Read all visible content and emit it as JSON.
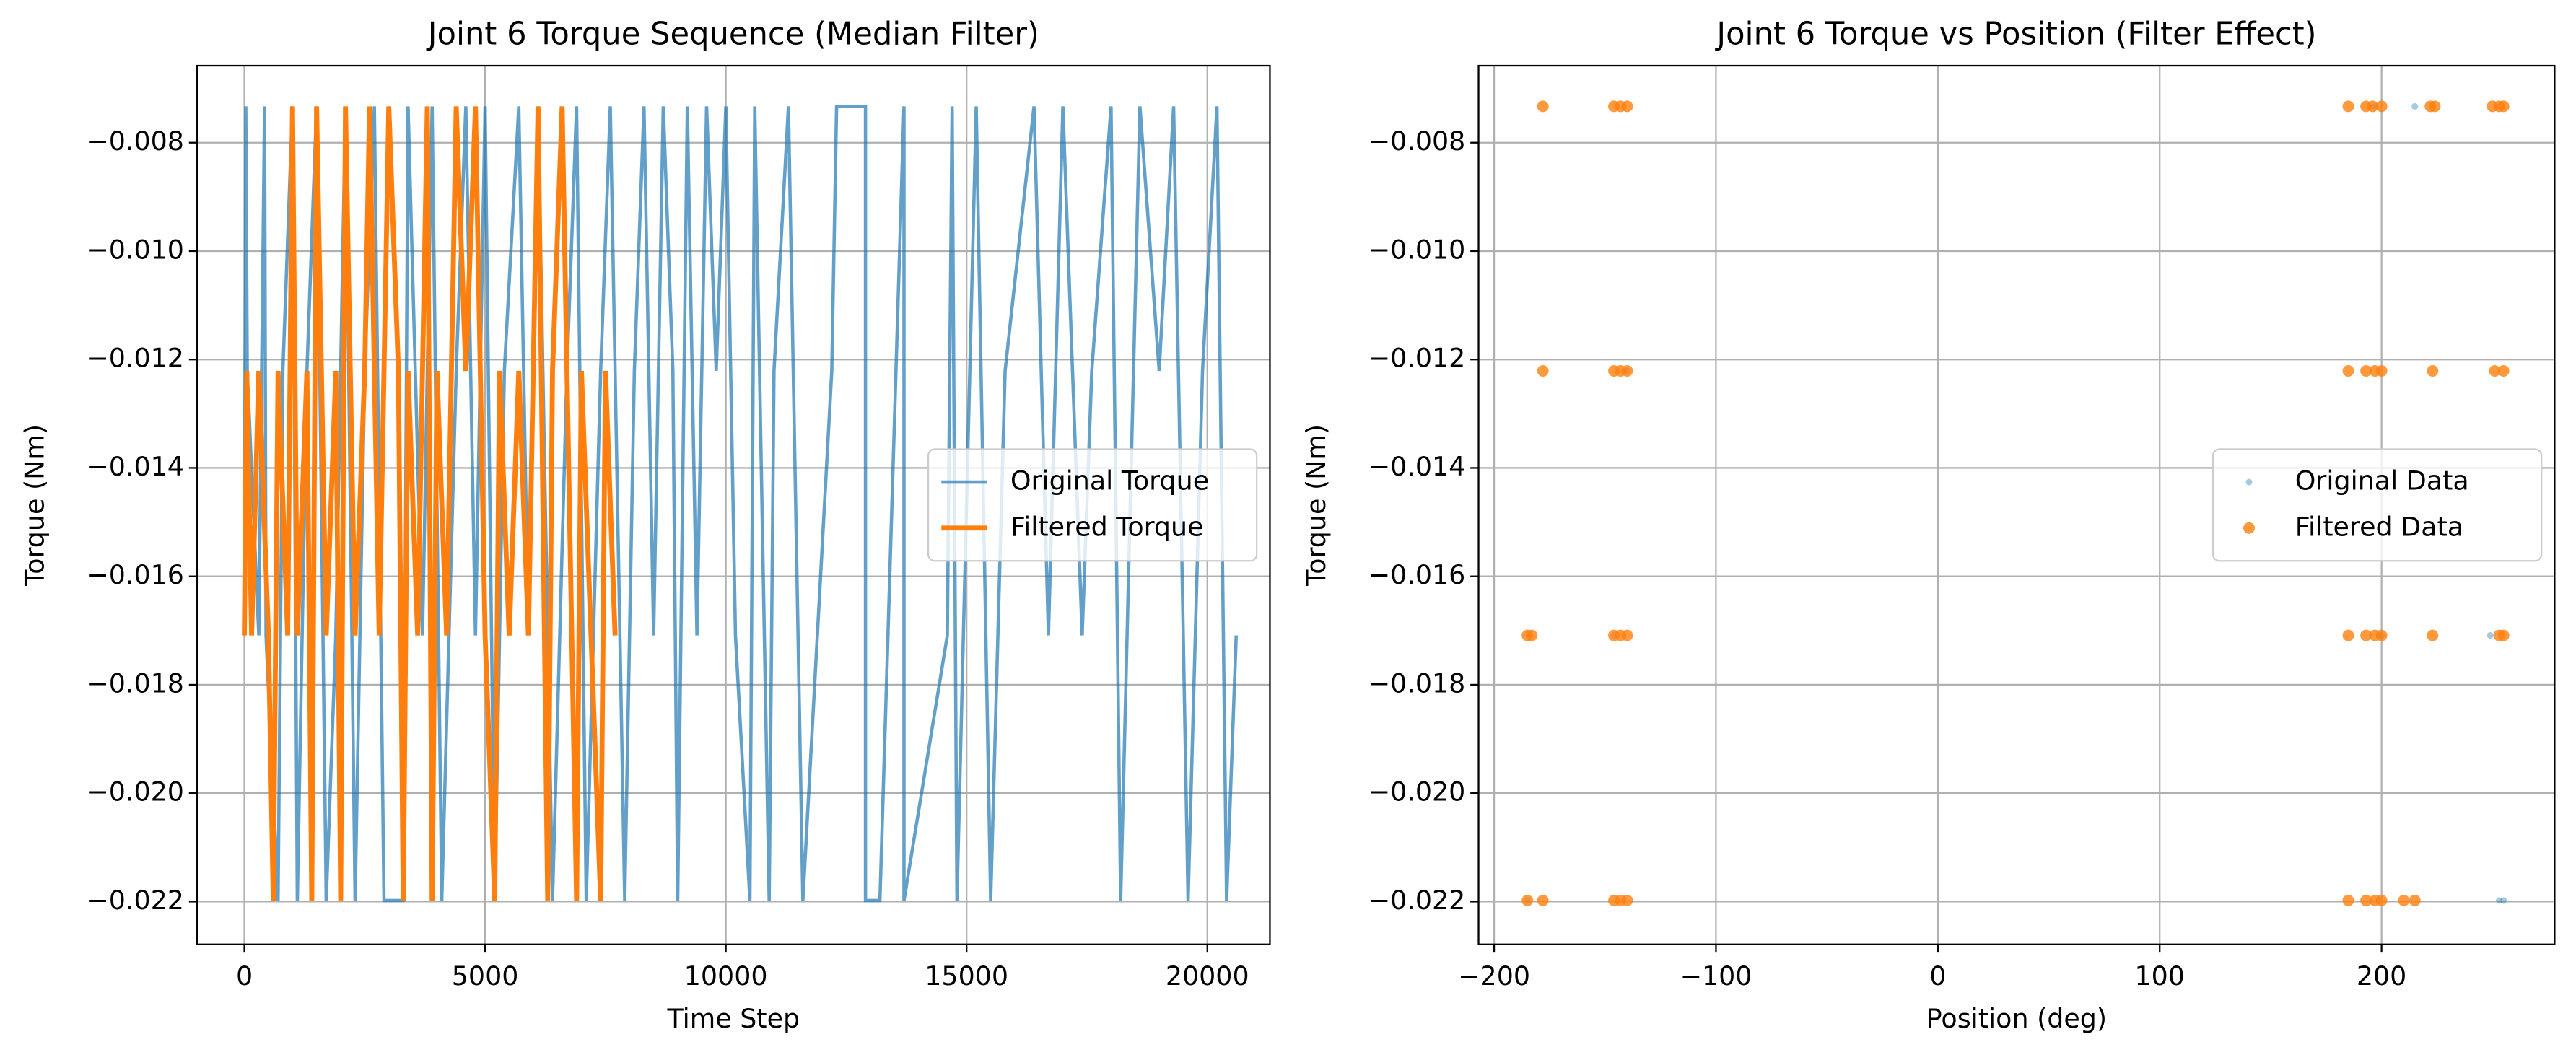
{
  "chart_data": [
    {
      "type": "line",
      "title": "Joint 6 Torque Sequence (Median Filter)",
      "x_label": "Time Step",
      "y_label": "Torque (Nm)",
      "xlim": [
        -980,
        21300
      ],
      "ylim": [
        -0.02279,
        -0.00658
      ],
      "xticks": [
        0,
        5000,
        10000,
        15000,
        20000
      ],
      "yticks": [
        {
          "value": -0.022,
          "label": "−0.022"
        },
        {
          "value": -0.02,
          "label": "−0.020"
        },
        {
          "value": -0.018,
          "label": "−0.018"
        },
        {
          "value": -0.016,
          "label": "−0.016"
        },
        {
          "value": -0.014,
          "label": "−0.014"
        },
        {
          "value": -0.012,
          "label": "−0.012"
        },
        {
          "value": -0.01,
          "label": "−0.010"
        },
        {
          "value": -0.008,
          "label": "−0.008"
        }
      ],
      "grid": true,
      "legend": "center right",
      "series": [
        {
          "name": "Original Torque",
          "color": "#1f77b4",
          "opacity": 0.7,
          "width": 2,
          "x": [
            0,
            30,
            60,
            300,
            420,
            450,
            700,
            800,
            1000,
            1100,
            1300,
            1500,
            1700,
            1900,
            2100,
            2300,
            2500,
            2700,
            2900,
            3300,
            3400,
            3700,
            3900,
            4100,
            4400,
            4600,
            4800,
            5000,
            5200,
            5400,
            5700,
            5900,
            6100,
            6400,
            6700,
            6900,
            7100,
            7400,
            7600,
            7900,
            8100,
            8300,
            8500,
            8700,
            8900,
            9000,
            9200,
            9400,
            9600,
            9800,
            10000,
            10200,
            10500,
            10600,
            10900,
            11000,
            11300,
            11600,
            12200,
            12300,
            12900,
            12900,
            13200,
            13700,
            13700,
            14600,
            14700,
            14800,
            15200,
            15500,
            15800,
            16400,
            16700,
            17000,
            17400,
            17600,
            18000,
            18200,
            18600,
            19000,
            19300,
            19600,
            19900,
            20200,
            20400,
            20600
          ],
          "values": [
            -0.01709,
            -0.00733,
            -0.01221,
            -0.01709,
            -0.00733,
            -0.01709,
            -0.02198,
            -0.01221,
            -0.00733,
            -0.02198,
            -0.01221,
            -0.00733,
            -0.02198,
            -0.01709,
            -0.00733,
            -0.02198,
            -0.01221,
            -0.00733,
            -0.02198,
            -0.02198,
            -0.00733,
            -0.01709,
            -0.00733,
            -0.02198,
            -0.01221,
            -0.00733,
            -0.01709,
            -0.00733,
            -0.02198,
            -0.01221,
            -0.00733,
            -0.01709,
            -0.00733,
            -0.02198,
            -0.01221,
            -0.00733,
            -0.02198,
            -0.01221,
            -0.00733,
            -0.02198,
            -0.01221,
            -0.00733,
            -0.01709,
            -0.00733,
            -0.01221,
            -0.02198,
            -0.00733,
            -0.01709,
            -0.00733,
            -0.01221,
            -0.00733,
            -0.01709,
            -0.02198,
            -0.00733,
            -0.02198,
            -0.01221,
            -0.00733,
            -0.02198,
            -0.01221,
            -0.00733,
            -0.00733,
            -0.02198,
            -0.02198,
            -0.00733,
            -0.02198,
            -0.01709,
            -0.00733,
            -0.02198,
            -0.00733,
            -0.02198,
            -0.01221,
            -0.00733,
            -0.01709,
            -0.00733,
            -0.01709,
            -0.01221,
            -0.00733,
            -0.02198,
            -0.00733,
            -0.01221,
            -0.00733,
            -0.02198,
            -0.01221,
            -0.00733,
            -0.02198,
            -0.01709
          ]
        },
        {
          "name": "Filtered Torque",
          "color": "#ff7f0e",
          "opacity": 1,
          "width": 3,
          "x": [
            0,
            50,
            150,
            300,
            500,
            600,
            700,
            900,
            1000,
            1100,
            1300,
            1400,
            1500,
            1700,
            1900,
            2000,
            2100,
            2300,
            2500,
            2600,
            2800,
            3000,
            3200,
            3300,
            3400,
            3600,
            3800,
            3900,
            4000,
            4200,
            4400,
            4600,
            4800,
            5000,
            5200,
            5300,
            5500,
            5700,
            5900,
            6100,
            6300,
            6400,
            6600,
            6800,
            6900,
            7000,
            7200,
            7400,
            7500,
            7700
          ],
          "values": [
            -0.01709,
            -0.01221,
            -0.01709,
            -0.01221,
            -0.01709,
            -0.02198,
            -0.01221,
            -0.01709,
            -0.00733,
            -0.01709,
            -0.01221,
            -0.02198,
            -0.00733,
            -0.01709,
            -0.01221,
            -0.02198,
            -0.00733,
            -0.01709,
            -0.01221,
            -0.00733,
            -0.01709,
            -0.00733,
            -0.01221,
            -0.02198,
            -0.01221,
            -0.01709,
            -0.00733,
            -0.02198,
            -0.01221,
            -0.01709,
            -0.00733,
            -0.01221,
            -0.00733,
            -0.01709,
            -0.02198,
            -0.01221,
            -0.01709,
            -0.01221,
            -0.01709,
            -0.00733,
            -0.02198,
            -0.01221,
            -0.00733,
            -0.01709,
            -0.02198,
            -0.01221,
            -0.01709,
            -0.02198,
            -0.01221,
            -0.01709
          ]
        }
      ]
    },
    {
      "type": "scatter",
      "title": "Joint 6 Torque vs Position (Filter Effect)",
      "x_label": "Position (deg)",
      "y_label": "Torque (Nm)",
      "xlim": [
        -207,
        278
      ],
      "ylim": [
        -0.02279,
        -0.00658
      ],
      "xticks": [
        {
          "value": -200,
          "label": "−200"
        },
        {
          "value": -100,
          "label": "−100"
        },
        0,
        100,
        200
      ],
      "yticks": [
        {
          "value": -0.022,
          "label": "−0.022"
        },
        {
          "value": -0.02,
          "label": "−0.020"
        },
        {
          "value": -0.018,
          "label": "−0.018"
        },
        {
          "value": -0.016,
          "label": "−0.016"
        },
        {
          "value": -0.014,
          "label": "−0.014"
        },
        {
          "value": -0.012,
          "label": "−0.012"
        },
        {
          "value": -0.01,
          "label": "−0.010"
        },
        {
          "value": -0.008,
          "label": "−0.008"
        }
      ],
      "grid": true,
      "legend": "center right",
      "series": [
        {
          "name": "Original Data",
          "color": "#1f77b4",
          "opacity": 0.4,
          "size": 2,
          "x": [
            215,
            249,
            253,
            255,
            -185,
            -146,
            -140,
            200,
            197
          ],
          "values": [
            -0.00733,
            -0.01709,
            -0.02198,
            -0.02198,
            -0.02198,
            -0.01709,
            -0.01221,
            -0.01709,
            -0.00733
          ]
        },
        {
          "name": "Filtered Data",
          "color": "#ff7f0e",
          "opacity": 0.8,
          "size": 3.5,
          "x": [
            -178,
            -146,
            -143,
            -140,
            185,
            193,
            196,
            200,
            222,
            224,
            250,
            253,
            255,
            -178,
            -146,
            -143,
            -140,
            185,
            193,
            197,
            200,
            223,
            251,
            255,
            -185,
            -183,
            -146,
            -143,
            -140,
            185,
            193,
            197,
            200,
            223,
            253,
            255,
            -185,
            -178,
            -146,
            -143,
            -140,
            185,
            193,
            197,
            200,
            210,
            215
          ],
          "values": [
            -0.00733,
            -0.00733,
            -0.00733,
            -0.00733,
            -0.00733,
            -0.00733,
            -0.00733,
            -0.00733,
            -0.00733,
            -0.00733,
            -0.00733,
            -0.00733,
            -0.00733,
            -0.01221,
            -0.01221,
            -0.01221,
            -0.01221,
            -0.01221,
            -0.01221,
            -0.01221,
            -0.01221,
            -0.01221,
            -0.01221,
            -0.01221,
            -0.01709,
            -0.01709,
            -0.01709,
            -0.01709,
            -0.01709,
            -0.01709,
            -0.01709,
            -0.01709,
            -0.01709,
            -0.01709,
            -0.01709,
            -0.01709,
            -0.02198,
            -0.02198,
            -0.02198,
            -0.02198,
            -0.02198,
            -0.02198,
            -0.02198,
            -0.02198,
            -0.02198,
            -0.02198,
            -0.02198
          ]
        }
      ]
    }
  ]
}
